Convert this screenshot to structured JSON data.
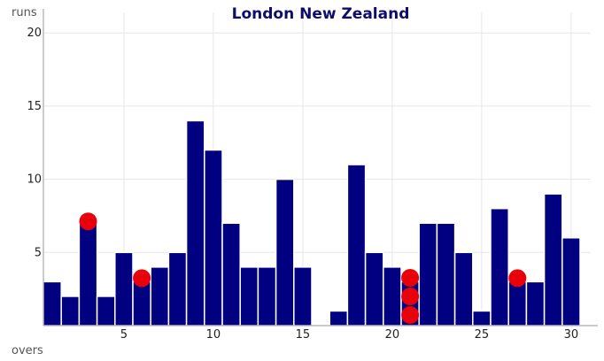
{
  "chart_data": {
    "type": "bar",
    "title": "London New Zealand",
    "xlabel": "overs",
    "ylabel": "runs",
    "xlim": [
      0.5,
      30.5
    ],
    "ylim": [
      0,
      20.8
    ],
    "xticks": [
      5,
      10,
      15,
      20,
      25,
      30
    ],
    "yticks": [
      5,
      10,
      15,
      20
    ],
    "grid": true,
    "bar_color": "#000080",
    "wicket_color": "#e8000b",
    "overs": [
      1,
      2,
      3,
      4,
      5,
      6,
      7,
      8,
      9,
      10,
      11,
      12,
      13,
      14,
      15,
      16,
      17,
      18,
      19,
      20,
      21,
      22,
      23,
      24,
      25,
      26,
      27,
      28,
      29,
      30
    ],
    "runs": [
      3,
      2,
      7,
      2,
      5,
      3,
      4,
      5,
      14,
      12,
      7,
      4,
      4,
      10,
      4,
      0,
      1,
      11,
      5,
      4,
      3,
      7,
      7,
      5,
      1,
      8,
      3,
      3,
      9,
      6
    ],
    "wickets": [
      {
        "over": 3,
        "count": 1
      },
      {
        "over": 6,
        "count": 1
      },
      {
        "over": 21,
        "count": 3
      },
      {
        "over": 27,
        "count": 1
      }
    ]
  }
}
